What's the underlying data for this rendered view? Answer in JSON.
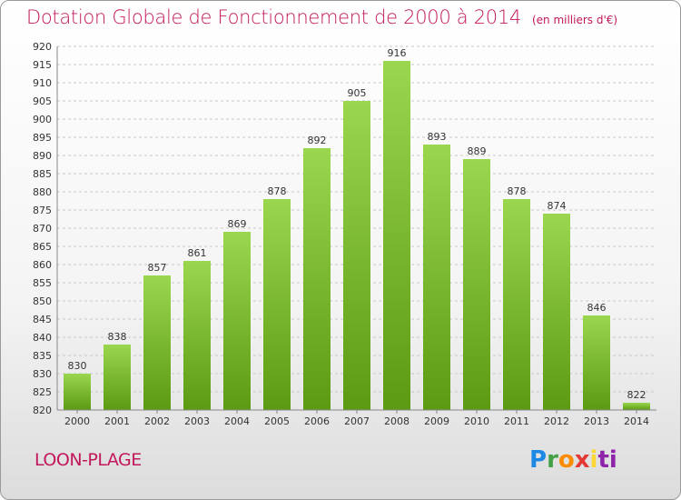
{
  "header": {
    "title": "Dotation Globale de Fonctionnement de 2000 à 2014",
    "unit": "(en milliers d'€)"
  },
  "commune": "LOON-PLAGE",
  "logo": {
    "text": "Proxiti",
    "letters": [
      "P",
      "r",
      "o",
      "x",
      "i",
      "ti"
    ]
  },
  "colors": {
    "title": "#c2185b",
    "bar_top": "#9bd64f",
    "bar_bottom": "#5b9a12"
  },
  "chart_data": {
    "type": "bar",
    "categories": [
      "2000",
      "2001",
      "2002",
      "2003",
      "2004",
      "2005",
      "2006",
      "2007",
      "2008",
      "2009",
      "2010",
      "2011",
      "2012",
      "2013",
      "2014"
    ],
    "values": [
      830,
      838,
      857,
      861,
      869,
      878,
      892,
      905,
      916,
      893,
      889,
      878,
      874,
      846,
      822
    ],
    "ylim": [
      820,
      920
    ],
    "yticks": [
      820,
      825,
      830,
      835,
      840,
      845,
      850,
      855,
      860,
      865,
      870,
      875,
      880,
      885,
      890,
      895,
      900,
      905,
      910,
      915,
      920
    ],
    "grid": true,
    "xlabel": "",
    "ylabel": ""
  }
}
